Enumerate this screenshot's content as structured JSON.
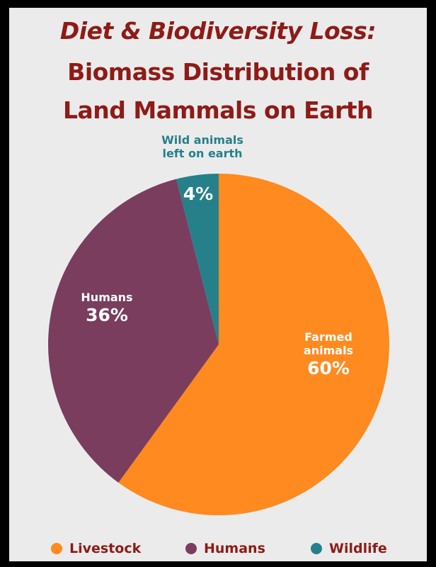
{
  "title": {
    "line1": "Diet & Biodiversity Loss:",
    "line2": "Biomass Distribution of",
    "line3": "Land Mammals on Earth"
  },
  "colors": {
    "title": "#8e1b17",
    "livestock": "#fe8a20",
    "humans": "#7a3d5e",
    "wildlife": "#25808a",
    "label_text": "#ffffff",
    "wildlife_callout": "#25808a"
  },
  "chart_data": {
    "type": "pie",
    "slices": [
      {
        "key": "livestock",
        "legend": "Livestock",
        "label": "Farmed animals",
        "label_lines": [
          "Farmed",
          "animals"
        ],
        "percent_text": "60%",
        "value": 60,
        "color": "#fe8a20"
      },
      {
        "key": "humans",
        "legend": "Humans",
        "label": "Humans",
        "label_lines": [
          "Humans"
        ],
        "percent_text": "36%",
        "value": 36,
        "color": "#7a3d5e"
      },
      {
        "key": "wildlife",
        "legend": "Wildlife",
        "label": "Wild animals left on earth",
        "label_lines": [
          "Wild animals",
          "left on earth"
        ],
        "percent_text": "4%",
        "value": 4,
        "color": "#25808a"
      }
    ],
    "start": "12 o'clock",
    "direction": "clockwise",
    "legend_position": "bottom"
  }
}
